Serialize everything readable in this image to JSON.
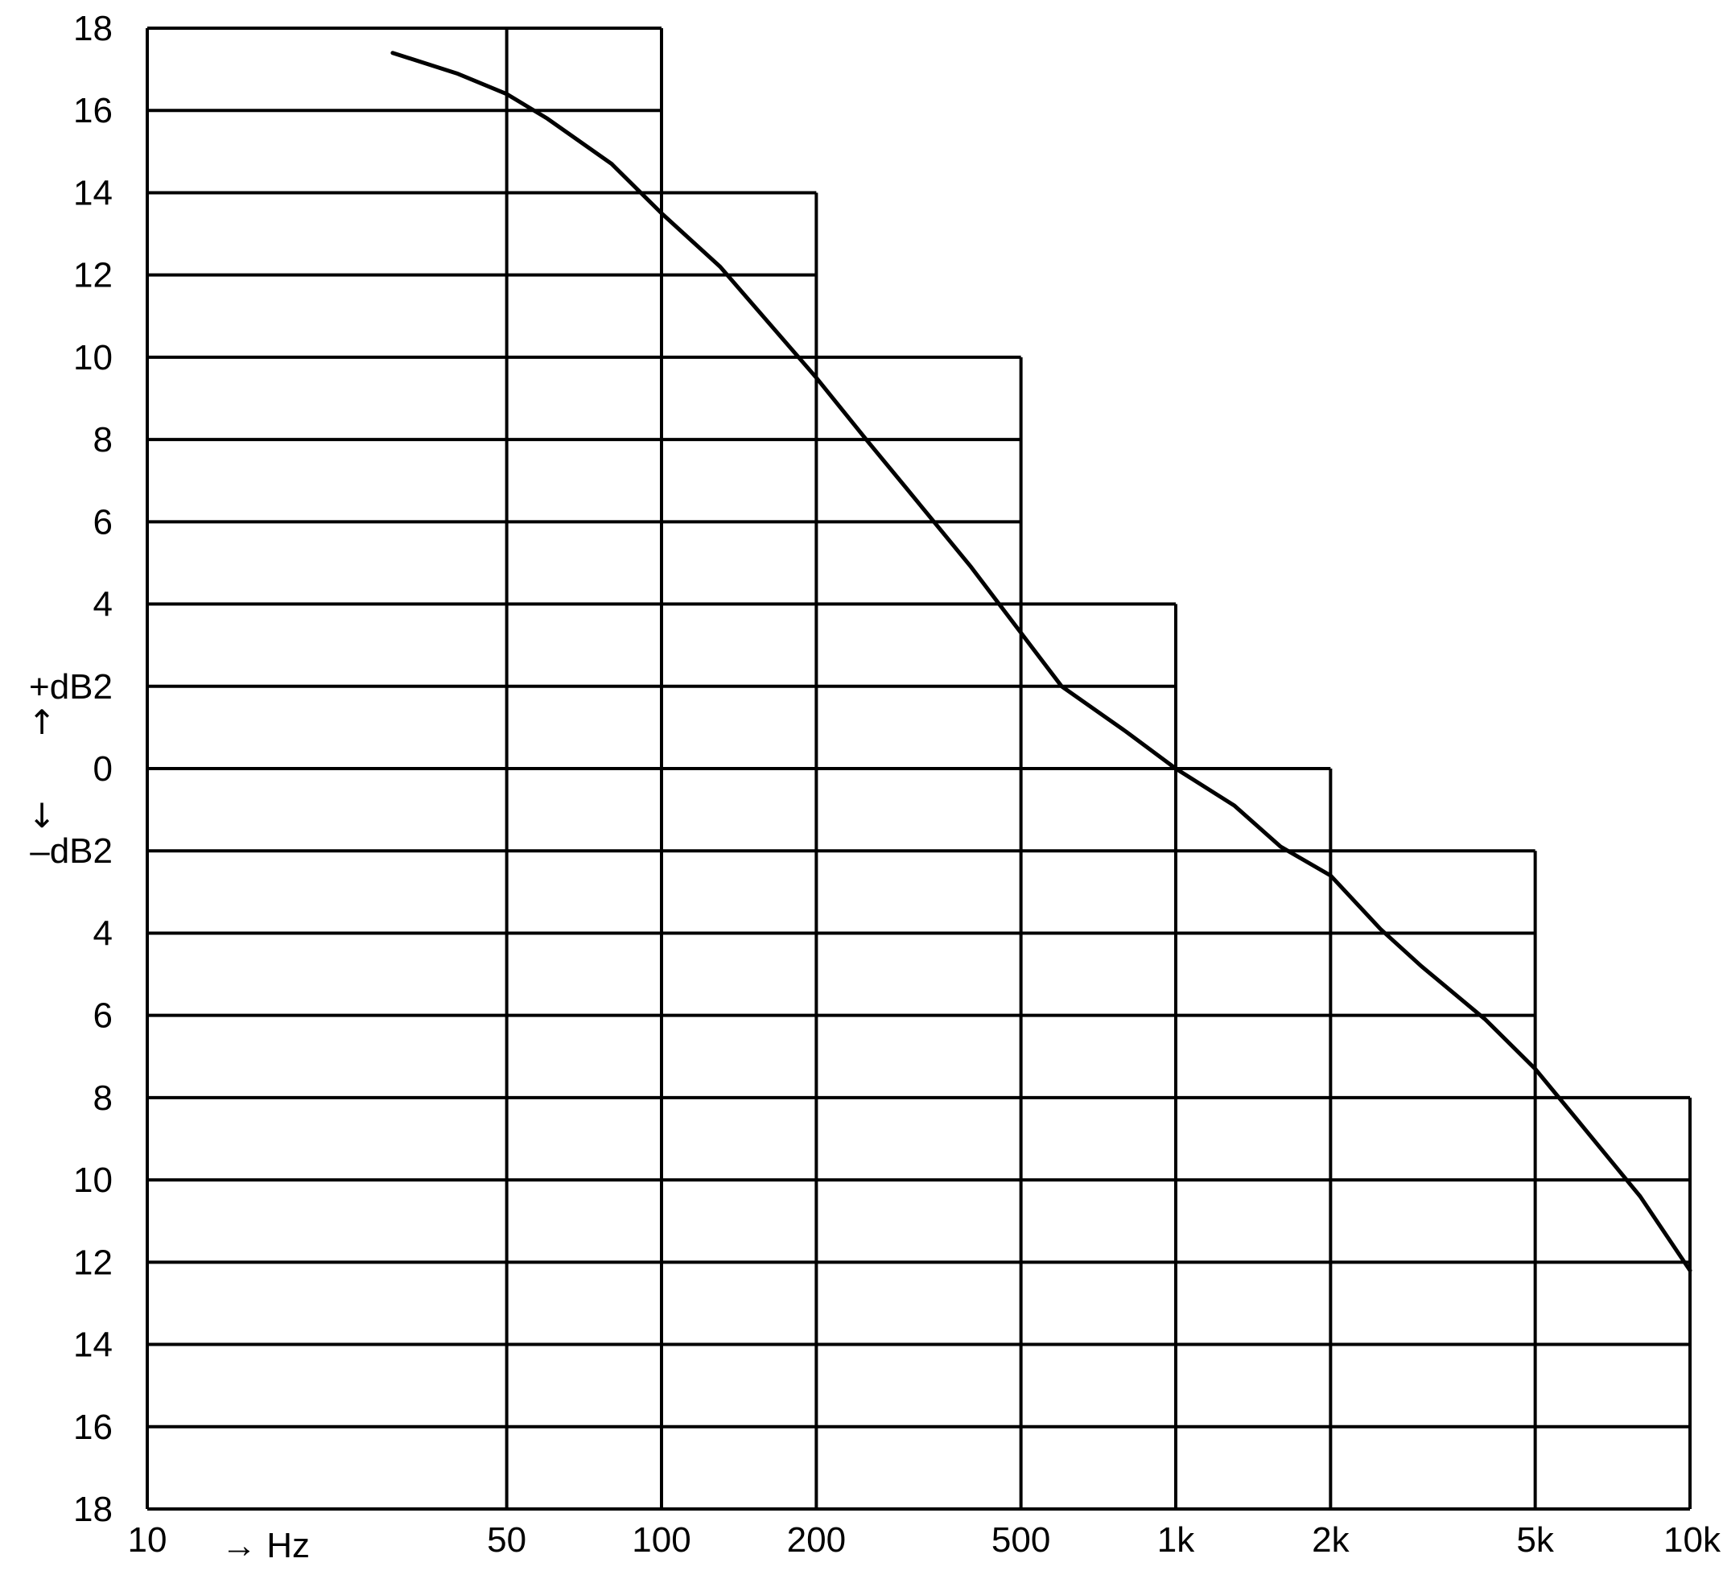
{
  "chart_data": {
    "type": "line",
    "title": "",
    "x_scale": "log",
    "x_ticks": [
      {
        "value": 10,
        "label": "10"
      },
      {
        "value": 50,
        "label": "50"
      },
      {
        "value": 100,
        "label": "100"
      },
      {
        "value": 200,
        "label": "200"
      },
      {
        "value": 500,
        "label": "500"
      },
      {
        "value": 1000,
        "label": "1k"
      },
      {
        "value": 2000,
        "label": "2k"
      },
      {
        "value": 5000,
        "label": "5k"
      },
      {
        "value": 10000,
        "label": "10k"
      }
    ],
    "xlim": [
      10,
      10000
    ],
    "ylim": [
      -18,
      18
    ],
    "y_ticks": [
      {
        "value": 18,
        "label": "18"
      },
      {
        "value": 16,
        "label": "16"
      },
      {
        "value": 14,
        "label": "14"
      },
      {
        "value": 12,
        "label": "12"
      },
      {
        "value": 10,
        "label": "10"
      },
      {
        "value": 8,
        "label": "8"
      },
      {
        "value": 6,
        "label": "6"
      },
      {
        "value": 4,
        "label": "4"
      },
      {
        "value": 2,
        "label": "+dB2"
      },
      {
        "value": 0,
        "label": "0"
      },
      {
        "value": -2,
        "label": "–dB2"
      },
      {
        "value": -4,
        "label": "4"
      },
      {
        "value": -6,
        "label": "6"
      },
      {
        "value": -8,
        "label": "8"
      },
      {
        "value": -10,
        "label": "10"
      },
      {
        "value": -12,
        "label": "12"
      },
      {
        "value": -14,
        "label": "14"
      },
      {
        "value": -16,
        "label": "16"
      },
      {
        "value": -18,
        "label": "18"
      }
    ],
    "xlabel": "→ Hz",
    "y_arrow_up": "↑",
    "y_arrow_down": "↓",
    "grid": true,
    "tolerance_boundary": [
      {
        "y_from": 18,
        "y_to": 14,
        "x_max": 100
      },
      {
        "y_from": 14,
        "y_to": 10,
        "x_max": 200
      },
      {
        "y_from": 10,
        "y_to": 4,
        "x_max": 500
      },
      {
        "y_from": 4,
        "y_to": 0,
        "x_max": 1000
      },
      {
        "y_from": 0,
        "y_to": -2,
        "x_max": 2000
      },
      {
        "y_from": -2,
        "y_to": -8,
        "x_max": 5000
      },
      {
        "y_from": -8,
        "y_to": -18,
        "x_max": 10000
      }
    ],
    "series": [
      {
        "x": [
          30,
          40,
          50,
          60,
          80,
          100,
          130,
          160,
          200,
          250,
          300,
          400,
          500,
          600,
          800,
          1000,
          1300,
          1600,
          2000,
          2500,
          3000,
          4000,
          5000,
          6000,
          8000,
          10000
        ],
        "y": [
          17.4,
          16.9,
          16.4,
          15.8,
          14.7,
          13.5,
          12.2,
          10.9,
          9.5,
          8.0,
          6.8,
          4.9,
          3.3,
          2.0,
          0.9,
          0.0,
          -0.9,
          -1.9,
          -2.6,
          -3.9,
          -4.8,
          -6.1,
          -7.3,
          -8.5,
          -10.4,
          -12.2
        ]
      }
    ]
  }
}
